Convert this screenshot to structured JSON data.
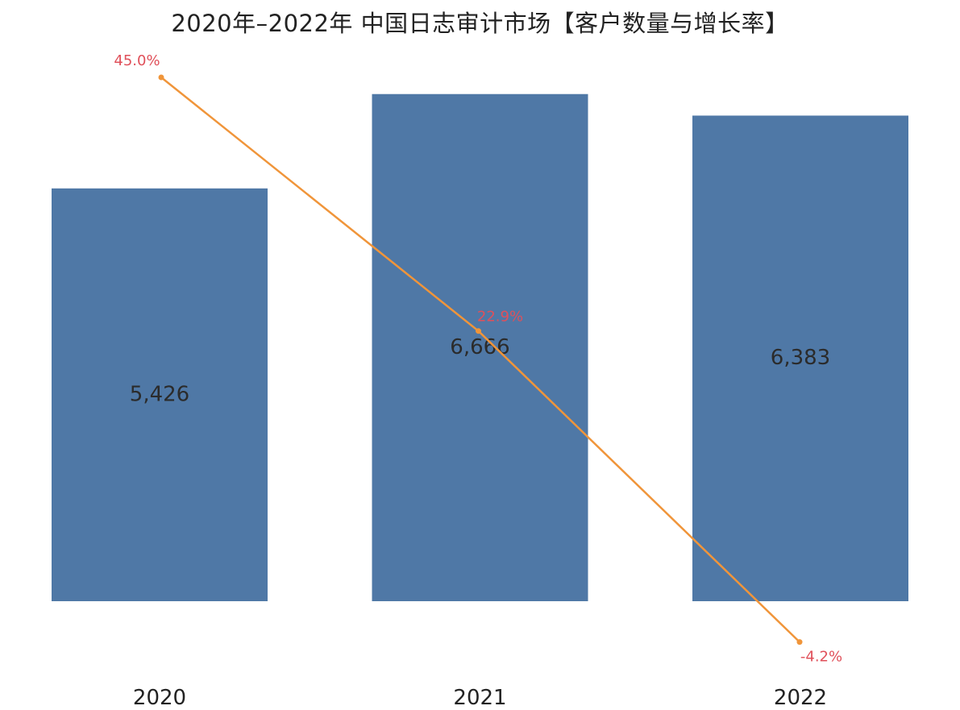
{
  "chart_data": {
    "type": "bar",
    "title": "2020年–2022年 中国日志审计市场【客户数量与增长率】",
    "categories": [
      "2020",
      "2021",
      "2022"
    ],
    "series": [
      {
        "type": "bar",
        "values": [
          5426,
          6666,
          6383
        ],
        "labels": [
          "5,426",
          "6,666",
          "6,383"
        ],
        "color": "#4f78a6"
      },
      {
        "type": "line",
        "values": [
          45.0,
          22.9,
          -4.2
        ],
        "labels": [
          "45.0%",
          "22.9%",
          "-4.2%"
        ],
        "color": "#f0953a",
        "label_color": "#e0505a"
      }
    ],
    "ylim": [
      0,
      7000
    ],
    "y2lim": [
      -5,
      45
    ],
    "grid": false,
    "legend": "none"
  }
}
